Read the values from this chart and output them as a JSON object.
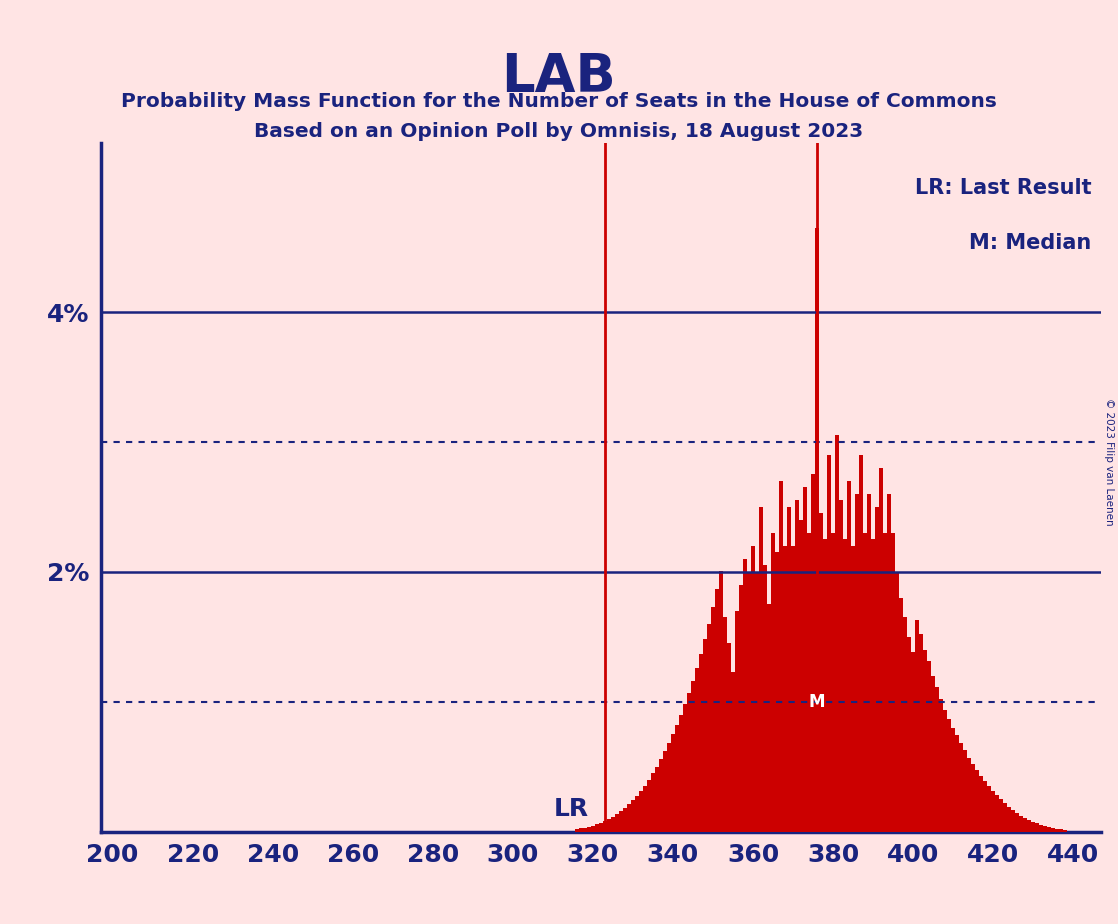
{
  "title": "LAB",
  "subtitle1": "Probability Mass Function for the Number of Seats in the House of Commons",
  "subtitle2": "Based on an Opinion Poll by Omnisis, 18 August 2023",
  "copyright": "© 2023 Filip van Laenen",
  "background_color": "#FFE4E4",
  "bar_color": "#CC0000",
  "axis_color": "#1a237e",
  "text_color": "#1a237e",
  "lr_line_x": 323,
  "median_line_x": 376,
  "xlim_min": 197,
  "xlim_max": 447,
  "ylim_min": 0.0,
  "ylim_max": 0.053,
  "xticks": [
    200,
    220,
    240,
    260,
    280,
    300,
    320,
    340,
    360,
    380,
    400,
    420,
    440
  ],
  "yticks_solid": [
    0.02,
    0.04
  ],
  "yticks_dotted": [
    0.01,
    0.03
  ],
  "seats": [
    316,
    317,
    318,
    319,
    320,
    321,
    322,
    323,
    324,
    325,
    326,
    327,
    328,
    329,
    330,
    331,
    332,
    333,
    334,
    335,
    336,
    337,
    338,
    339,
    340,
    341,
    342,
    343,
    344,
    345,
    346,
    347,
    348,
    349,
    350,
    351,
    352,
    353,
    354,
    355,
    356,
    357,
    358,
    359,
    360,
    361,
    362,
    363,
    364,
    365,
    366,
    367,
    368,
    369,
    370,
    371,
    372,
    373,
    374,
    375,
    376,
    377,
    378,
    379,
    380,
    381,
    382,
    383,
    384,
    385,
    386,
    387,
    388,
    389,
    390,
    391,
    392,
    393,
    394,
    395,
    396,
    397,
    398,
    399,
    400,
    401,
    402,
    403,
    404,
    405,
    406,
    407,
    408,
    409,
    410,
    411,
    412,
    413,
    414,
    415,
    416,
    417,
    418,
    419,
    420,
    421,
    422,
    423,
    424,
    425,
    426,
    427,
    428,
    429,
    430,
    431,
    432,
    433,
    434,
    435,
    436,
    437,
    438
  ],
  "probs": [
    0.0002,
    0.00025,
    0.0003,
    0.00035,
    0.00045,
    0.00055,
    0.00065,
    0.0008,
    0.00095,
    0.00115,
    0.00135,
    0.0016,
    0.00185,
    0.0021,
    0.0024,
    0.00275,
    0.0031,
    0.0035,
    0.004,
    0.0045,
    0.005,
    0.0056,
    0.0062,
    0.0068,
    0.0075,
    0.0082,
    0.009,
    0.0098,
    0.0107,
    0.0116,
    0.0126,
    0.0137,
    0.0148,
    0.016,
    0.0173,
    0.0187,
    0.0201,
    0.0165,
    0.0145,
    0.0123,
    0.017,
    0.019,
    0.021,
    0.02,
    0.022,
    0.02,
    0.025,
    0.0205,
    0.0175,
    0.023,
    0.0215,
    0.027,
    0.022,
    0.025,
    0.022,
    0.0255,
    0.024,
    0.0265,
    0.023,
    0.0275,
    0.0465,
    0.0245,
    0.0225,
    0.029,
    0.023,
    0.0305,
    0.0255,
    0.0225,
    0.027,
    0.022,
    0.026,
    0.029,
    0.023,
    0.026,
    0.0225,
    0.025,
    0.028,
    0.023,
    0.026,
    0.023,
    0.02,
    0.018,
    0.0165,
    0.015,
    0.0138,
    0.0163,
    0.0152,
    0.014,
    0.0131,
    0.012,
    0.0111,
    0.0102,
    0.0094,
    0.0087,
    0.008,
    0.0074,
    0.0068,
    0.00625,
    0.0057,
    0.0052,
    0.00475,
    0.0043,
    0.0039,
    0.00352,
    0.00315,
    0.0028,
    0.00248,
    0.00218,
    0.0019,
    0.00165,
    0.00142,
    0.00122,
    0.00104,
    0.00088,
    0.00075,
    0.00063,
    0.00052,
    0.00043,
    0.00035,
    0.00028,
    0.00022,
    0.00017,
    0.00013
  ]
}
